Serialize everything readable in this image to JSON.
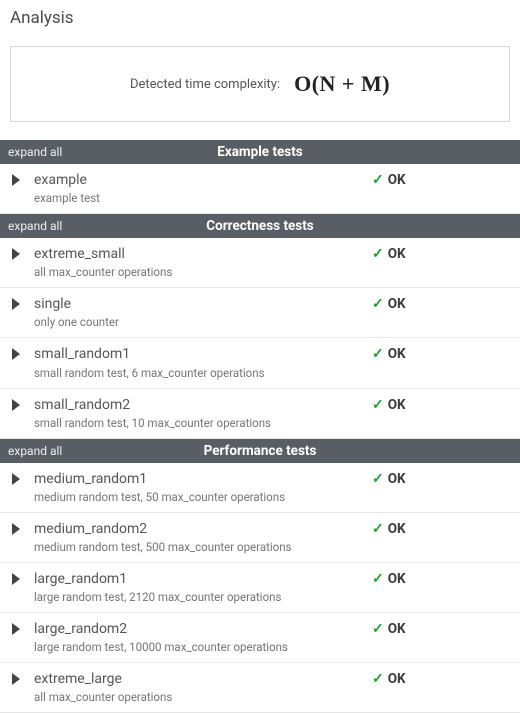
{
  "title": "Analysis",
  "complexity": {
    "label": "Detected time complexity:",
    "value": "O(N + M)"
  },
  "colors": {
    "header_bg": "#595d64",
    "header_fg": "#ffffff",
    "ok_check": "#1fa02e",
    "border": "#d8d8d8",
    "row_border": "#e6e6e6"
  },
  "sections": [
    {
      "expand_label": "expand all",
      "title": "Example tests",
      "tests": [
        {
          "name": "example",
          "desc": "example test",
          "status": "OK"
        }
      ]
    },
    {
      "expand_label": "expand all",
      "title": "Correctness tests",
      "tests": [
        {
          "name": "extreme_small",
          "desc": "all max_counter operations",
          "status": "OK"
        },
        {
          "name": "single",
          "desc": "only one counter",
          "status": "OK"
        },
        {
          "name": "small_random1",
          "desc": "small random test, 6 max_counter operations",
          "status": "OK"
        },
        {
          "name": "small_random2",
          "desc": "small random test, 10 max_counter operations",
          "status": "OK"
        }
      ]
    },
    {
      "expand_label": "expand all",
      "title": "Performance tests",
      "tests": [
        {
          "name": "medium_random1",
          "desc": "medium random test, 50 max_counter operations",
          "status": "OK"
        },
        {
          "name": "medium_random2",
          "desc": "medium random test, 500 max_counter operations",
          "status": "OK"
        },
        {
          "name": "large_random1",
          "desc": "large random test, 2120 max_counter operations",
          "status": "OK"
        },
        {
          "name": "large_random2",
          "desc": "large random test, 10000 max_counter operations",
          "status": "OK"
        },
        {
          "name": "extreme_large",
          "desc": "all max_counter operations",
          "status": "OK"
        }
      ]
    }
  ]
}
